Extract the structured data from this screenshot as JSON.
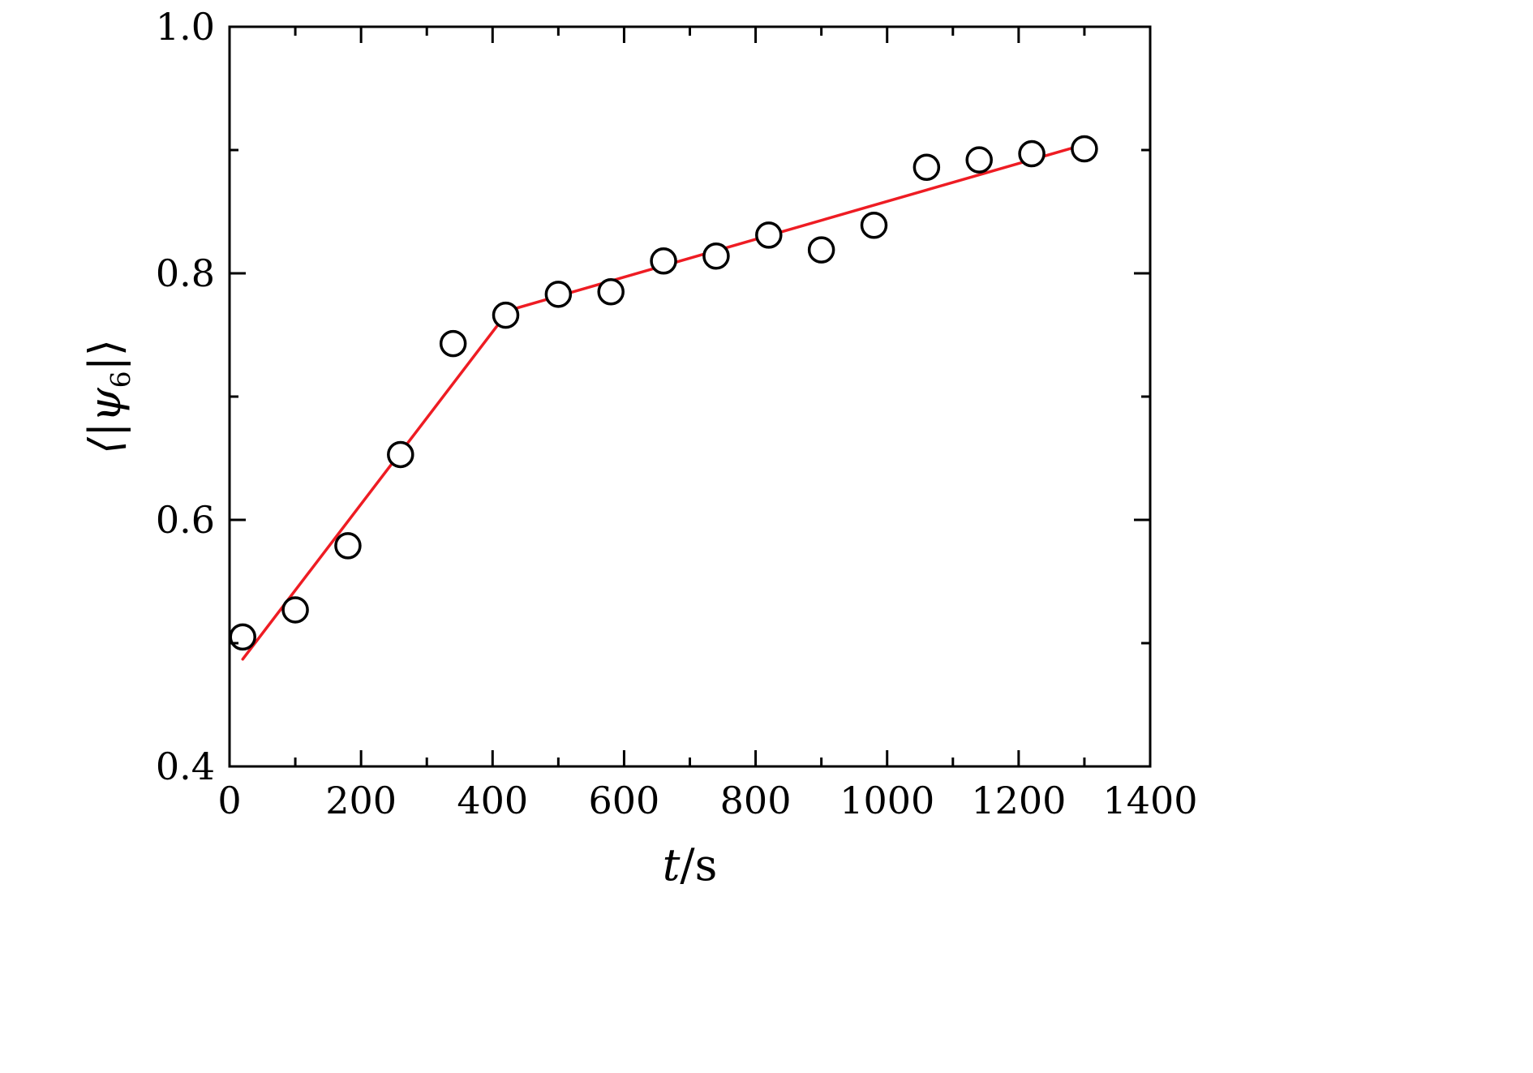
{
  "figure": {
    "background": "#ffffff",
    "frame_color": "#000000",
    "accent_red": "#ee1c23"
  },
  "chart_data": {
    "type": "scatter",
    "title": "",
    "xlabel": {
      "italic": "t",
      "rest": "/s",
      "full": "t/s"
    },
    "ylabel": {
      "pre": "⟨|ψ",
      "sub": "6",
      "post": "|⟩",
      "full": "⟨|ψ₆|⟩"
    },
    "xlim": [
      0,
      1400
    ],
    "ylim": [
      0.4,
      1.0
    ],
    "grid": false,
    "legend": false,
    "xticks": [
      {
        "value": 0,
        "label": "0"
      },
      {
        "value": 200,
        "label": "200"
      },
      {
        "value": 400,
        "label": "400"
      },
      {
        "value": 600,
        "label": "600"
      },
      {
        "value": 800,
        "label": "800"
      },
      {
        "value": 1000,
        "label": "1000"
      },
      {
        "value": 1200,
        "label": "1200"
      },
      {
        "value": 1400,
        "label": "1400"
      }
    ],
    "yticks": [
      {
        "value": 0.4,
        "label": "0.4"
      },
      {
        "value": 0.6,
        "label": "0.6"
      },
      {
        "value": 0.8,
        "label": "0.8"
      },
      {
        "value": 1.0,
        "label": "1.0"
      }
    ],
    "x_minor_ticks": [
      100,
      300,
      500,
      700,
      900,
      1100,
      1300
    ],
    "y_minor_ticks": [
      0.5,
      0.7,
      0.9
    ],
    "series": [
      {
        "name": "piecewise-linear-fit",
        "type": "line",
        "color": "#ee1c23",
        "points": [
          [
            20,
            0.487
          ],
          [
            425,
            0.77
          ],
          [
            1310,
            0.906
          ]
        ]
      },
      {
        "name": "psi6-data-points",
        "type": "scatter",
        "marker": "open-circle",
        "color": "#000000",
        "marker_fill": "#ffffff",
        "points": [
          [
            20,
            0.505
          ],
          [
            100,
            0.527
          ],
          [
            180,
            0.579
          ],
          [
            260,
            0.653
          ],
          [
            340,
            0.743
          ],
          [
            420,
            0.766
          ],
          [
            500,
            0.783
          ],
          [
            580,
            0.785
          ],
          [
            660,
            0.81
          ],
          [
            740,
            0.814
          ],
          [
            820,
            0.831
          ],
          [
            900,
            0.819
          ],
          [
            980,
            0.839
          ],
          [
            1060,
            0.886
          ],
          [
            1140,
            0.892
          ],
          [
            1220,
            0.897
          ],
          [
            1300,
            0.901
          ]
        ]
      }
    ]
  }
}
